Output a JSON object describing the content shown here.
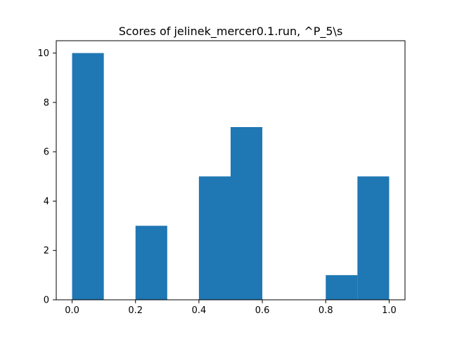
{
  "chart_data": {
    "type": "bar",
    "title": "Scores of jelinek_mercer0.1.run, ^P_5\\s",
    "xlabel": "",
    "ylabel": "",
    "bins": [
      {
        "start": 0.0,
        "end": 0.1,
        "count": 10
      },
      {
        "start": 0.1,
        "end": 0.2,
        "count": 0
      },
      {
        "start": 0.2,
        "end": 0.3,
        "count": 3
      },
      {
        "start": 0.3,
        "end": 0.4,
        "count": 0
      },
      {
        "start": 0.4,
        "end": 0.5,
        "count": 5
      },
      {
        "start": 0.5,
        "end": 0.6,
        "count": 7
      },
      {
        "start": 0.6,
        "end": 0.7,
        "count": 0
      },
      {
        "start": 0.7,
        "end": 0.8,
        "count": 0
      },
      {
        "start": 0.8,
        "end": 0.9,
        "count": 1
      },
      {
        "start": 0.9,
        "end": 1.0,
        "count": 5
      }
    ],
    "xlim": [
      -0.05,
      1.05
    ],
    "ylim": [
      0,
      10.5
    ],
    "xticks": [
      0.0,
      0.2,
      0.4,
      0.6,
      0.8,
      1.0
    ],
    "xtick_labels": [
      "0.0",
      "0.2",
      "0.4",
      "0.6",
      "0.8",
      "1.0"
    ],
    "yticks": [
      0,
      2,
      4,
      6,
      8,
      10
    ],
    "ytick_labels": [
      "0",
      "2",
      "4",
      "6",
      "8",
      "10"
    ],
    "bar_color": "#1f77b4",
    "grid": false,
    "legend": "none"
  }
}
